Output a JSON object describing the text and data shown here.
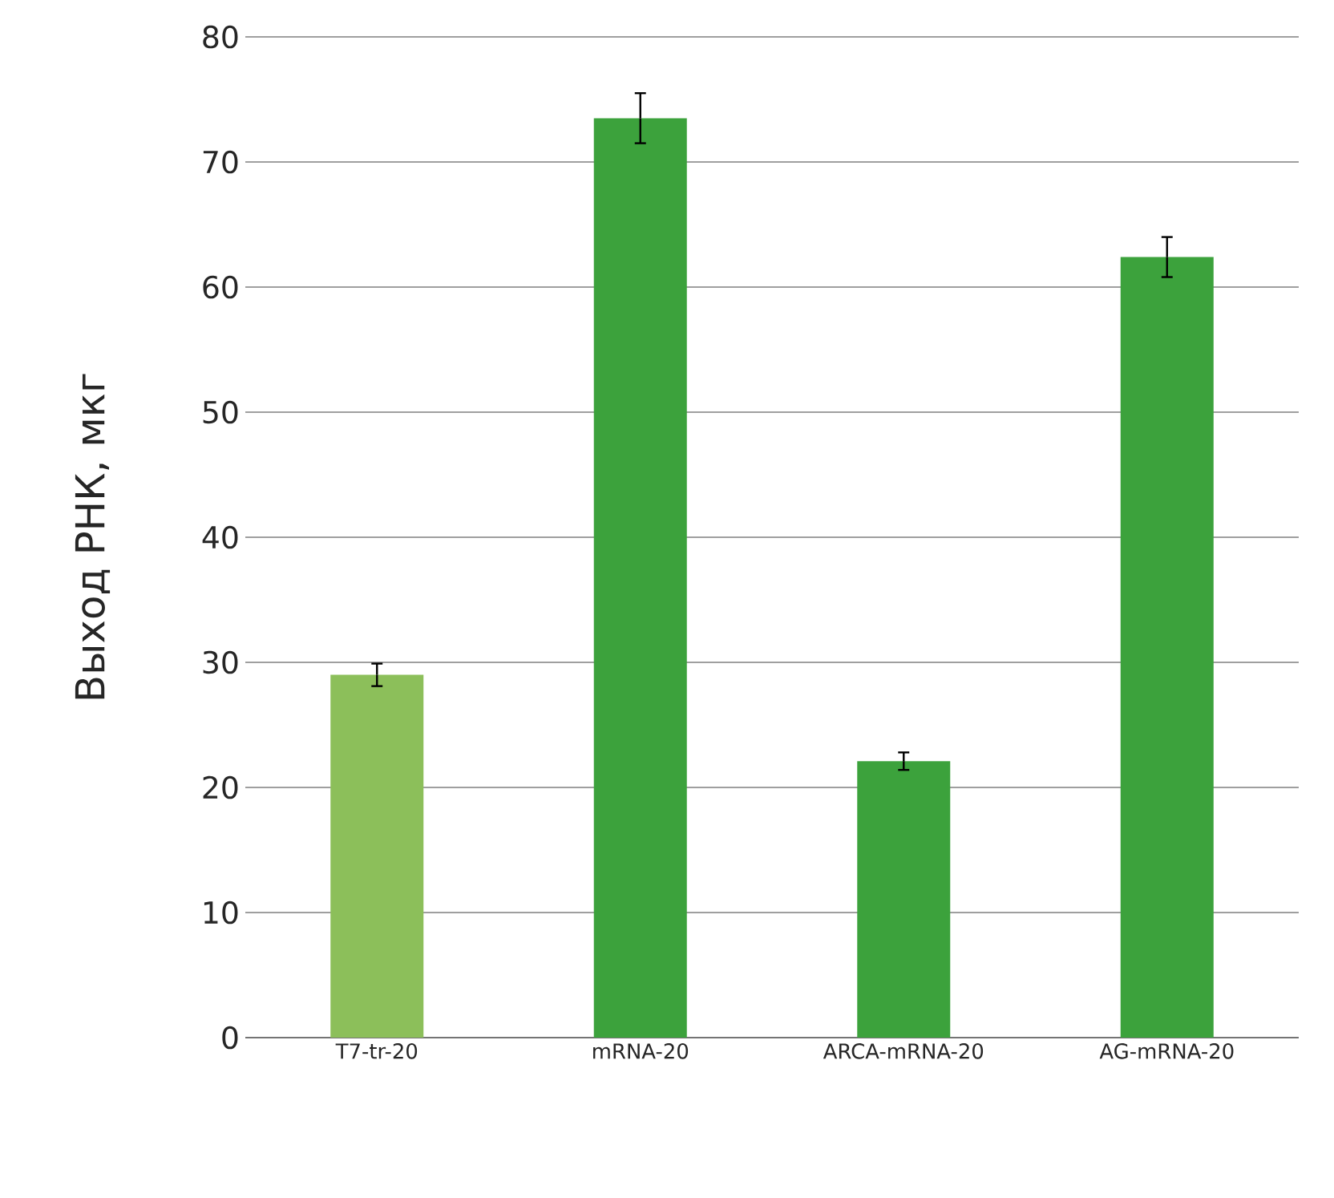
{
  "chart_data": {
    "type": "bar",
    "ylabel": "Выход РНК, мкг",
    "categories": [
      "T7-tr-20",
      "mRNA-20",
      "ARCA-mRNA-20",
      "AG-mRNA-20"
    ],
    "values": [
      29.0,
      73.5,
      22.1,
      62.4
    ],
    "errors": [
      0.9,
      2.0,
      0.7,
      1.6
    ],
    "colors": [
      "#8cbf5a",
      "#3ca23c",
      "#3ca23c",
      "#3ca23c"
    ],
    "ylim": [
      0,
      80
    ],
    "yticks": [
      0,
      10,
      20,
      30,
      40,
      50,
      60,
      70,
      80
    ],
    "grid": "y"
  }
}
